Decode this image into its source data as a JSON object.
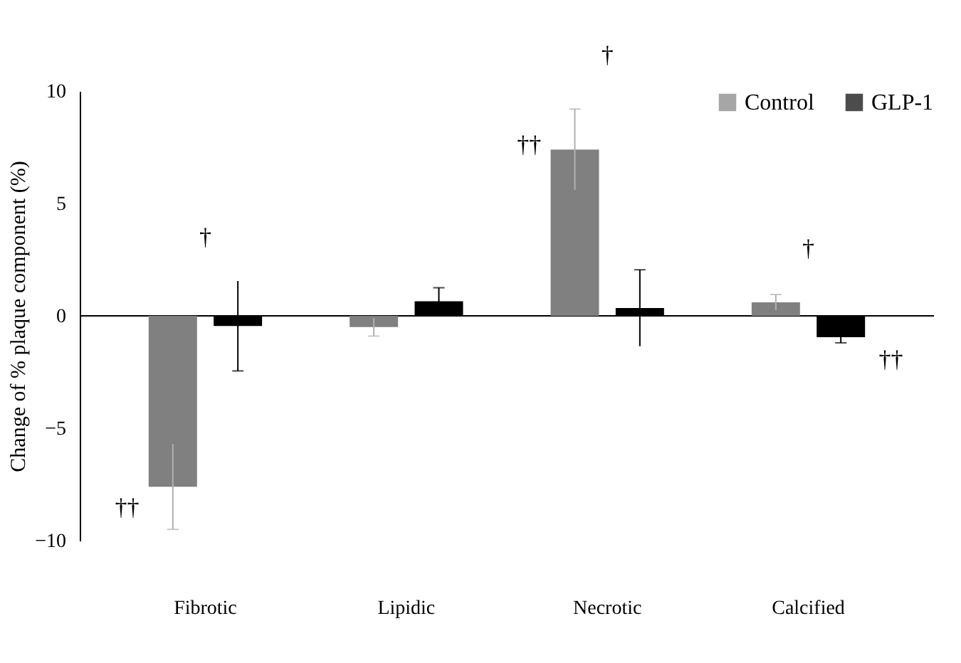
{
  "chart_data": {
    "type": "bar",
    "ylabel": "Change of % plaque component (%)",
    "categories": [
      "Fibrotic",
      "Lipidic",
      "Necrotic",
      "Calcified"
    ],
    "series": [
      {
        "name": "Control",
        "color": "#808080",
        "values": [
          -7.6,
          -0.5,
          7.4,
          0.6
        ],
        "errors": [
          1.9,
          0.4,
          1.8,
          0.35
        ]
      },
      {
        "name": "GLP-1",
        "color": "#000000",
        "values": [
          -0.45,
          0.65,
          0.35,
          -0.95
        ],
        "errors": [
          2.0,
          0.6,
          1.7,
          0.25
        ]
      }
    ],
    "ylim": [
      -10,
      10
    ],
    "yticks": [
      -10,
      -5,
      0,
      5,
      10
    ],
    "grid": false,
    "ref_lines": [
      {
        "axis": "y",
        "value": 0
      }
    ],
    "legend": "top right",
    "annotations": [
      "†",
      "††",
      "†",
      "††",
      "†",
      "††"
    ]
  }
}
